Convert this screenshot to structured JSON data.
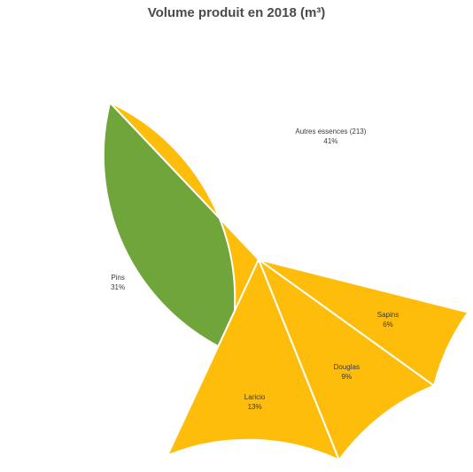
{
  "chart_data": {
    "type": "pie",
    "title": "Volume produit en 2018 (m³)",
    "slices": [
      {
        "label": "Autres essences (213)",
        "value": 41,
        "value_text": "41%",
        "color": "#70a53c"
      },
      {
        "label": "Pins",
        "value": 31,
        "value_text": "31%",
        "color": "#fdbd0a"
      },
      {
        "label": "Laricio",
        "value": 13,
        "value_text": "13%",
        "color": "#fdbd0a"
      },
      {
        "label": "Douglas",
        "value": 9,
        "value_text": "9%",
        "color": "#fdbd0a"
      },
      {
        "label": "Sapins",
        "value": 6,
        "value_text": "6%",
        "color": "#fdbd0a"
      }
    ],
    "slice_border_color": "#ffffff",
    "legend": "none"
  }
}
